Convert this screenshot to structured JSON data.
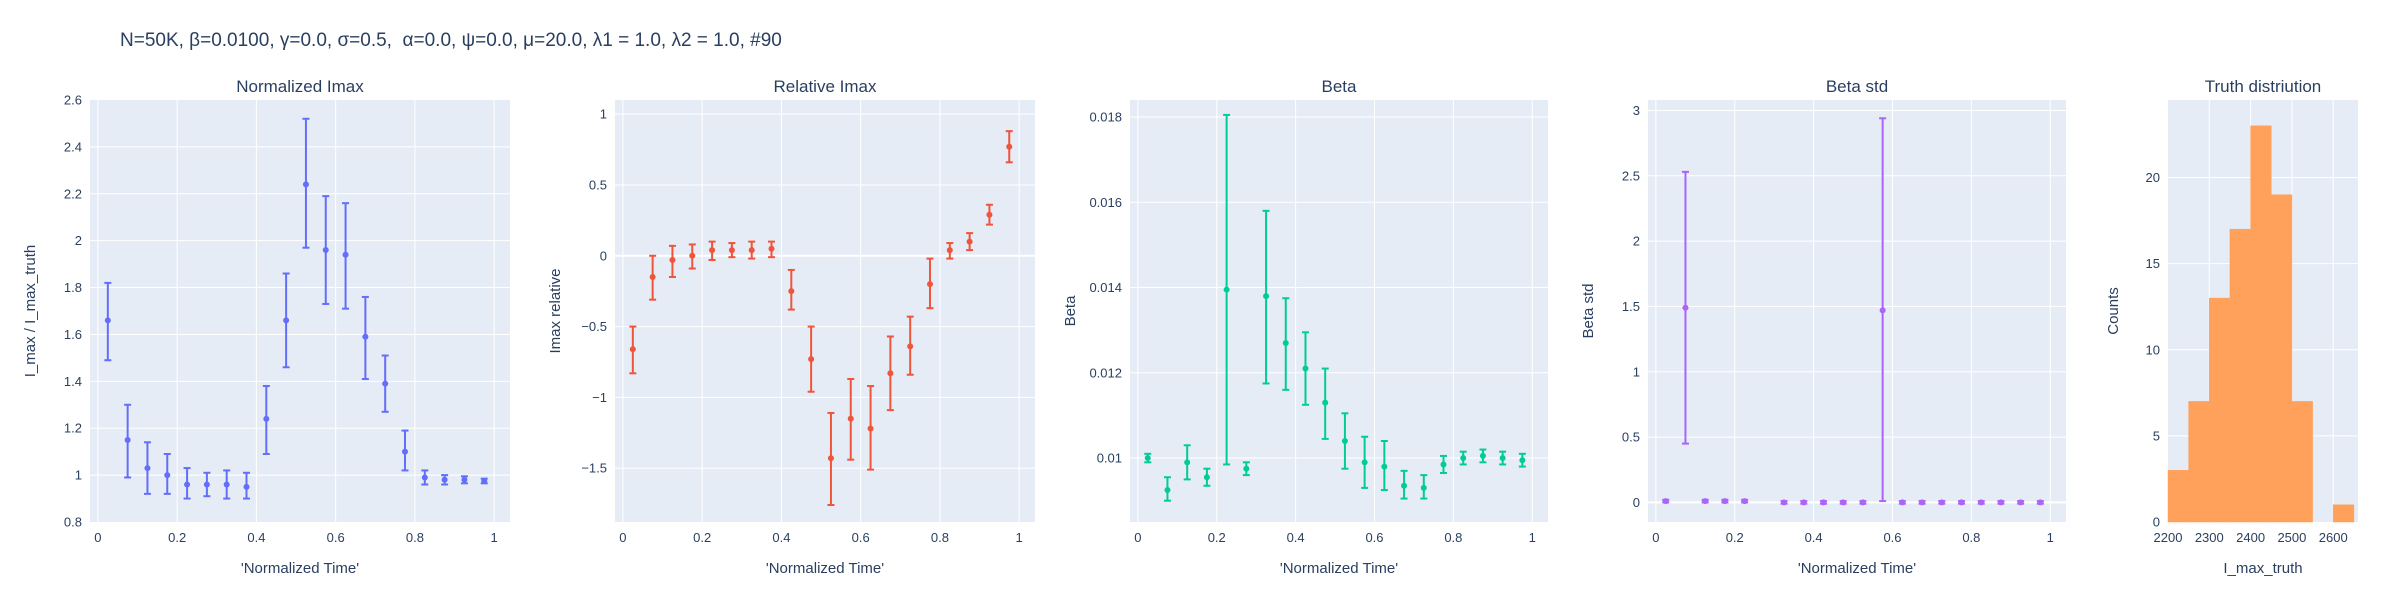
{
  "figure_title": "N=50K, β=0.0100, γ=0.0, σ=0.5,  α=0.0, ψ=0.0, μ=20.0, λ1 = 1.0, λ2 = 1.0, #90",
  "chart_data": [
    {
      "type": "scatter",
      "title": "Normalized Imax",
      "xlabel": "'Normalized Time'",
      "ylabel": "I_max / I_max_truth",
      "color": "#636efa",
      "xlim": [
        -0.02,
        1.04
      ],
      "ylim": [
        0.8,
        2.6
      ],
      "xticks": [
        {
          "v": 0,
          "t": "0"
        },
        {
          "v": 0.2,
          "t": "0.2"
        },
        {
          "v": 0.4,
          "t": "0.4"
        },
        {
          "v": 0.6,
          "t": "0.6"
        },
        {
          "v": 0.8,
          "t": "0.8"
        },
        {
          "v": 1,
          "t": "1"
        }
      ],
      "yticks": [
        {
          "v": 0.8,
          "t": "0.8"
        },
        {
          "v": 1,
          "t": "1"
        },
        {
          "v": 1.2,
          "t": "1.2"
        },
        {
          "v": 1.4,
          "t": "1.4"
        },
        {
          "v": 1.6,
          "t": "1.6"
        },
        {
          "v": 1.8,
          "t": "1.8"
        },
        {
          "v": 2,
          "t": "2"
        },
        {
          "v": 2.2,
          "t": "2.2"
        },
        {
          "v": 2.4,
          "t": "2.4"
        },
        {
          "v": 2.6,
          "t": "2.6"
        }
      ],
      "points": [
        {
          "x": 0.025,
          "y": 1.66,
          "lo": 1.49,
          "hi": 1.82
        },
        {
          "x": 0.075,
          "y": 1.15,
          "lo": 0.99,
          "hi": 1.3
        },
        {
          "x": 0.125,
          "y": 1.03,
          "lo": 0.92,
          "hi": 1.14
        },
        {
          "x": 0.175,
          "y": 1.0,
          "lo": 0.92,
          "hi": 1.09
        },
        {
          "x": 0.225,
          "y": 0.96,
          "lo": 0.9,
          "hi": 1.03
        },
        {
          "x": 0.275,
          "y": 0.96,
          "lo": 0.91,
          "hi": 1.01
        },
        {
          "x": 0.325,
          "y": 0.96,
          "lo": 0.9,
          "hi": 1.02
        },
        {
          "x": 0.375,
          "y": 0.95,
          "lo": 0.9,
          "hi": 1.01
        },
        {
          "x": 0.425,
          "y": 1.24,
          "lo": 1.09,
          "hi": 1.38
        },
        {
          "x": 0.475,
          "y": 1.66,
          "lo": 1.46,
          "hi": 1.86
        },
        {
          "x": 0.525,
          "y": 2.24,
          "lo": 1.97,
          "hi": 2.52
        },
        {
          "x": 0.575,
          "y": 1.96,
          "lo": 1.73,
          "hi": 2.19
        },
        {
          "x": 0.625,
          "y": 1.94,
          "lo": 1.71,
          "hi": 2.16
        },
        {
          "x": 0.675,
          "y": 1.59,
          "lo": 1.41,
          "hi": 1.76
        },
        {
          "x": 0.725,
          "y": 1.39,
          "lo": 1.27,
          "hi": 1.51
        },
        {
          "x": 0.775,
          "y": 1.1,
          "lo": 1.02,
          "hi": 1.19
        },
        {
          "x": 0.825,
          "y": 0.99,
          "lo": 0.96,
          "hi": 1.02
        },
        {
          "x": 0.875,
          "y": 0.98,
          "lo": 0.96,
          "hi": 1.0
        },
        {
          "x": 0.925,
          "y": 0.98,
          "lo": 0.965,
          "hi": 0.995
        },
        {
          "x": 0.975,
          "y": 0.975,
          "lo": 0.965,
          "hi": 0.985
        }
      ]
    },
    {
      "type": "scatter",
      "title": "Relative Imax",
      "xlabel": "'Normalized Time'",
      "ylabel": "Imax relative",
      "color": "#ef553b",
      "xlim": [
        -0.02,
        1.04
      ],
      "ylim": [
        -1.88,
        1.1
      ],
      "xticks": [
        {
          "v": 0,
          "t": "0"
        },
        {
          "v": 0.2,
          "t": "0.2"
        },
        {
          "v": 0.4,
          "t": "0.4"
        },
        {
          "v": 0.6,
          "t": "0.6"
        },
        {
          "v": 0.8,
          "t": "0.8"
        },
        {
          "v": 1,
          "t": "1"
        }
      ],
      "yticks": [
        {
          "v": -1.5,
          "t": "−1.5"
        },
        {
          "v": -1,
          "t": "−1"
        },
        {
          "v": -0.5,
          "t": "−0.5"
        },
        {
          "v": 0,
          "t": "0"
        },
        {
          "v": 0.5,
          "t": "0.5"
        },
        {
          "v": 1,
          "t": "1"
        }
      ],
      "points": [
        {
          "x": 0.025,
          "y": -0.66,
          "lo": -0.83,
          "hi": -0.5
        },
        {
          "x": 0.075,
          "y": -0.15,
          "lo": -0.31,
          "hi": 0.0
        },
        {
          "x": 0.125,
          "y": -0.03,
          "lo": -0.15,
          "hi": 0.07
        },
        {
          "x": 0.175,
          "y": 0.0,
          "lo": -0.09,
          "hi": 0.08
        },
        {
          "x": 0.225,
          "y": 0.04,
          "lo": -0.03,
          "hi": 0.1
        },
        {
          "x": 0.275,
          "y": 0.04,
          "lo": -0.01,
          "hi": 0.09
        },
        {
          "x": 0.325,
          "y": 0.04,
          "lo": -0.02,
          "hi": 0.1
        },
        {
          "x": 0.375,
          "y": 0.05,
          "lo": -0.01,
          "hi": 0.1
        },
        {
          "x": 0.425,
          "y": -0.25,
          "lo": -0.38,
          "hi": -0.1
        },
        {
          "x": 0.475,
          "y": -0.73,
          "lo": -0.96,
          "hi": -0.5
        },
        {
          "x": 0.525,
          "y": -1.43,
          "lo": -1.76,
          "hi": -1.11
        },
        {
          "x": 0.575,
          "y": -1.15,
          "lo": -1.44,
          "hi": -0.87
        },
        {
          "x": 0.625,
          "y": -1.22,
          "lo": -1.51,
          "hi": -0.92
        },
        {
          "x": 0.675,
          "y": -0.83,
          "lo": -1.09,
          "hi": -0.57
        },
        {
          "x": 0.725,
          "y": -0.64,
          "lo": -0.84,
          "hi": -0.43
        },
        {
          "x": 0.775,
          "y": -0.2,
          "lo": -0.37,
          "hi": -0.02
        },
        {
          "x": 0.825,
          "y": 0.04,
          "lo": -0.02,
          "hi": 0.09
        },
        {
          "x": 0.875,
          "y": 0.1,
          "lo": 0.04,
          "hi": 0.16
        },
        {
          "x": 0.925,
          "y": 0.29,
          "lo": 0.22,
          "hi": 0.36
        },
        {
          "x": 0.975,
          "y": 0.77,
          "lo": 0.66,
          "hi": 0.88
        }
      ]
    },
    {
      "type": "scatter",
      "title": "Beta",
      "xlabel": "'Normalized Time'",
      "ylabel": "Beta",
      "color": "#00cc96",
      "xlim": [
        -0.02,
        1.04
      ],
      "ylim": [
        0.0085,
        0.0184
      ],
      "xticks": [
        {
          "v": 0,
          "t": "0"
        },
        {
          "v": 0.2,
          "t": "0.2"
        },
        {
          "v": 0.4,
          "t": "0.4"
        },
        {
          "v": 0.6,
          "t": "0.6"
        },
        {
          "v": 0.8,
          "t": "0.8"
        },
        {
          "v": 1,
          "t": "1"
        }
      ],
      "yticks": [
        {
          "v": 0.01,
          "t": "0.01"
        },
        {
          "v": 0.012,
          "t": "0.012"
        },
        {
          "v": 0.014,
          "t": "0.014"
        },
        {
          "v": 0.016,
          "t": "0.016"
        },
        {
          "v": 0.018,
          "t": "0.018"
        }
      ],
      "points": [
        {
          "x": 0.025,
          "y": 0.01,
          "lo": 0.0099,
          "hi": 0.0101
        },
        {
          "x": 0.075,
          "y": 0.00925,
          "lo": 0.009,
          "hi": 0.00955
        },
        {
          "x": 0.125,
          "y": 0.0099,
          "lo": 0.0095,
          "hi": 0.0103
        },
        {
          "x": 0.175,
          "y": 0.00955,
          "lo": 0.00935,
          "hi": 0.00975
        },
        {
          "x": 0.225,
          "y": 0.01395,
          "lo": 0.00985,
          "hi": 0.01805
        },
        {
          "x": 0.275,
          "y": 0.00975,
          "lo": 0.0096,
          "hi": 0.0099
        },
        {
          "x": 0.325,
          "y": 0.0138,
          "lo": 0.01175,
          "hi": 0.0158
        },
        {
          "x": 0.375,
          "y": 0.0127,
          "lo": 0.0116,
          "hi": 0.01375
        },
        {
          "x": 0.425,
          "y": 0.0121,
          "lo": 0.01125,
          "hi": 0.01295
        },
        {
          "x": 0.475,
          "y": 0.0113,
          "lo": 0.01045,
          "hi": 0.0121
        },
        {
          "x": 0.525,
          "y": 0.0104,
          "lo": 0.00975,
          "hi": 0.01105
        },
        {
          "x": 0.575,
          "y": 0.0099,
          "lo": 0.0093,
          "hi": 0.0105
        },
        {
          "x": 0.625,
          "y": 0.0098,
          "lo": 0.00925,
          "hi": 0.0104
        },
        {
          "x": 0.675,
          "y": 0.00935,
          "lo": 0.00905,
          "hi": 0.0097
        },
        {
          "x": 0.725,
          "y": 0.0093,
          "lo": 0.00905,
          "hi": 0.0096
        },
        {
          "x": 0.775,
          "y": 0.00985,
          "lo": 0.00965,
          "hi": 0.01005
        },
        {
          "x": 0.825,
          "y": 0.01,
          "lo": 0.00985,
          "hi": 0.01015
        },
        {
          "x": 0.875,
          "y": 0.01005,
          "lo": 0.0099,
          "hi": 0.0102
        },
        {
          "x": 0.925,
          "y": 0.01,
          "lo": 0.00985,
          "hi": 0.01015
        },
        {
          "x": 0.975,
          "y": 0.00995,
          "lo": 0.0098,
          "hi": 0.0101
        }
      ]
    },
    {
      "type": "scatter",
      "title": "Beta std",
      "xlabel": "'Normalized Time'",
      "ylabel": "Beta std",
      "color": "#ab63fa",
      "xlim": [
        -0.02,
        1.04
      ],
      "ylim": [
        -0.15,
        3.08
      ],
      "xticks": [
        {
          "v": 0,
          "t": "0"
        },
        {
          "v": 0.2,
          "t": "0.2"
        },
        {
          "v": 0.4,
          "t": "0.4"
        },
        {
          "v": 0.6,
          "t": "0.6"
        },
        {
          "v": 0.8,
          "t": "0.8"
        },
        {
          "v": 1,
          "t": "1"
        }
      ],
      "yticks": [
        {
          "v": 0,
          "t": "0"
        },
        {
          "v": 0.5,
          "t": "0.5"
        },
        {
          "v": 1,
          "t": "1"
        },
        {
          "v": 1.5,
          "t": "1.5"
        },
        {
          "v": 2,
          "t": "2"
        },
        {
          "v": 2.5,
          "t": "2.5"
        },
        {
          "v": 3,
          "t": "3"
        }
      ],
      "points": [
        {
          "x": 0.025,
          "y": 0.01,
          "lo": 0.0,
          "hi": 0.02
        },
        {
          "x": 0.075,
          "y": 1.49,
          "lo": 0.45,
          "hi": 2.53
        },
        {
          "x": 0.125,
          "y": 0.01,
          "lo": 0.0,
          "hi": 0.02
        },
        {
          "x": 0.175,
          "y": 0.01,
          "lo": 0.0,
          "hi": 0.02
        },
        {
          "x": 0.225,
          "y": 0.01,
          "lo": 0.0,
          "hi": 0.02
        },
        {
          "x": 0.325,
          "y": 0.0,
          "lo": -0.01,
          "hi": 0.01
        },
        {
          "x": 0.375,
          "y": 0.0,
          "lo": -0.01,
          "hi": 0.01
        },
        {
          "x": 0.425,
          "y": 0.0,
          "lo": -0.01,
          "hi": 0.01
        },
        {
          "x": 0.475,
          "y": 0.0,
          "lo": -0.01,
          "hi": 0.01
        },
        {
          "x": 0.525,
          "y": 0.0,
          "lo": -0.01,
          "hi": 0.01
        },
        {
          "x": 0.575,
          "y": 1.47,
          "lo": 0.01,
          "hi": 2.94
        },
        {
          "x": 0.625,
          "y": 0.0,
          "lo": -0.01,
          "hi": 0.01
        },
        {
          "x": 0.675,
          "y": 0.0,
          "lo": -0.01,
          "hi": 0.01
        },
        {
          "x": 0.725,
          "y": 0.0,
          "lo": -0.01,
          "hi": 0.01
        },
        {
          "x": 0.775,
          "y": 0.0,
          "lo": -0.01,
          "hi": 0.01
        },
        {
          "x": 0.825,
          "y": 0.0,
          "lo": -0.01,
          "hi": 0.01
        },
        {
          "x": 0.875,
          "y": 0.0,
          "lo": -0.01,
          "hi": 0.01
        },
        {
          "x": 0.925,
          "y": 0.0,
          "lo": -0.01,
          "hi": 0.01
        },
        {
          "x": 0.975,
          "y": 0.0,
          "lo": -0.01,
          "hi": 0.01
        }
      ]
    },
    {
      "type": "bar",
      "title": "Truth distriution",
      "xlabel": "I_max_truth",
      "ylabel": "Counts",
      "color": "#ffa15a",
      "xlim": [
        2200,
        2660
      ],
      "ylim": [
        0,
        24.5
      ],
      "xticks": [
        {
          "v": 2200,
          "t": "2200"
        },
        {
          "v": 2300,
          "t": "2300"
        },
        {
          "v": 2400,
          "t": "2400"
        },
        {
          "v": 2500,
          "t": "2500"
        },
        {
          "v": 2600,
          "t": "2600"
        }
      ],
      "yticks": [
        {
          "v": 0,
          "t": "0"
        },
        {
          "v": 5,
          "t": "5"
        },
        {
          "v": 10,
          "t": "10"
        },
        {
          "v": 15,
          "t": "15"
        },
        {
          "v": 20,
          "t": "20"
        }
      ],
      "bins": [
        {
          "x0": 2200,
          "x1": 2250,
          "count": 3
        },
        {
          "x0": 2250,
          "x1": 2300,
          "count": 7
        },
        {
          "x0": 2300,
          "x1": 2350,
          "count": 13
        },
        {
          "x0": 2350,
          "x1": 2400,
          "count": 17
        },
        {
          "x0": 2400,
          "x1": 2450,
          "count": 23
        },
        {
          "x0": 2450,
          "x1": 2500,
          "count": 19
        },
        {
          "x0": 2500,
          "x1": 2550,
          "count": 7
        },
        {
          "x0": 2550,
          "x1": 2600,
          "count": 0
        },
        {
          "x0": 2600,
          "x1": 2650,
          "count": 1
        }
      ]
    }
  ]
}
